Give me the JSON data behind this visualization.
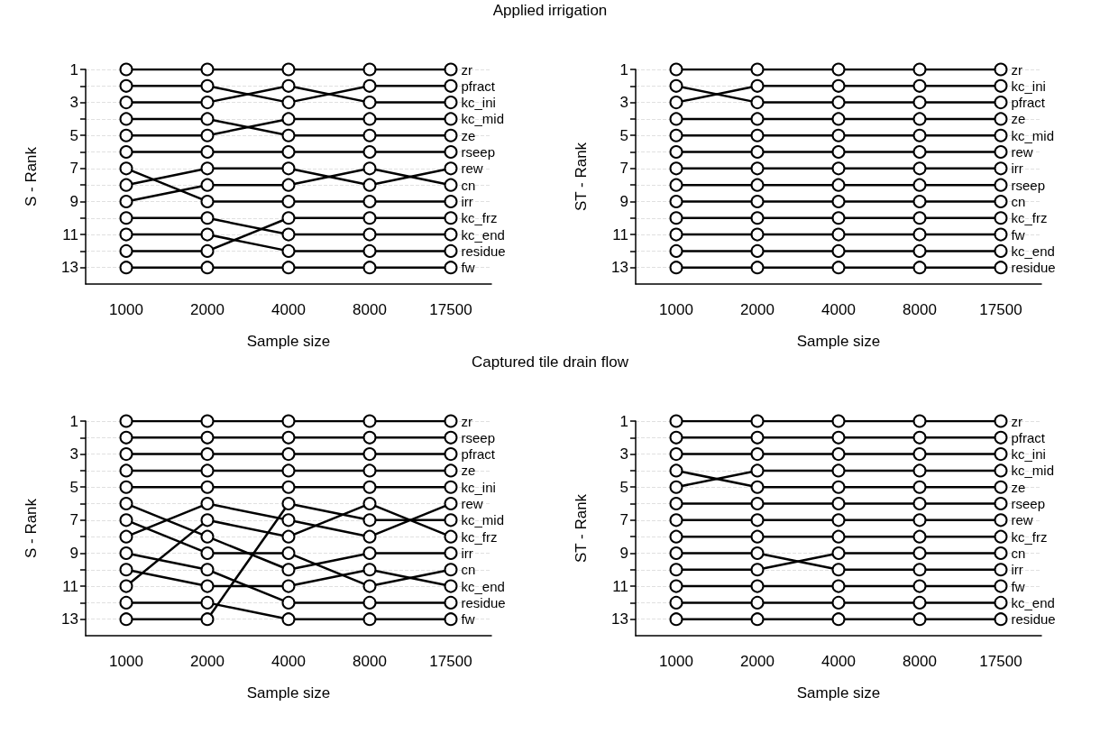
{
  "chart_data": [
    {
      "type": "line",
      "title": "Applied irrigation",
      "xlabel": "Sample size",
      "ylabel": "S - Rank",
      "categories": [
        "1000",
        "2000",
        "4000",
        "8000",
        "17500"
      ],
      "ylim": [
        14,
        1
      ],
      "yticks": [
        1,
        {
          "value": 2,
          "label": null
        },
        3,
        {
          "value": 4,
          "label": null
        },
        5,
        {
          "value": 6,
          "label": null
        },
        7,
        {
          "value": 8,
          "label": null
        },
        9,
        {
          "value": 10,
          "label": null
        },
        11,
        {
          "value": 12,
          "label": null
        },
        13
      ],
      "grid": "y",
      "marker": "circle",
      "line_style": "solid",
      "legend": false,
      "series": [
        {
          "name": "zr",
          "color": "#000000",
          "values": [
            1,
            1,
            1,
            1,
            1
          ]
        },
        {
          "name": "pfract",
          "color": "#000000",
          "values": [
            2,
            2,
            3,
            2,
            2
          ]
        },
        {
          "name": "kc_ini",
          "color": "#000000",
          "values": [
            3,
            3,
            2,
            3,
            3
          ]
        },
        {
          "name": "kc_mid",
          "color": "#000000",
          "values": [
            5,
            5,
            4,
            4,
            4
          ]
        },
        {
          "name": "ze",
          "color": "#000000",
          "values": [
            4,
            4,
            5,
            5,
            5
          ]
        },
        {
          "name": "rseep",
          "color": "#000000",
          "values": [
            6,
            6,
            6,
            6,
            6
          ]
        },
        {
          "name": "rew",
          "color": "#000000",
          "values": [
            8,
            7,
            7,
            8,
            7
          ]
        },
        {
          "name": "cn",
          "color": "#000000",
          "values": [
            9,
            8,
            8,
            7,
            8
          ]
        },
        {
          "name": "irr",
          "color": "#000000",
          "values": [
            7,
            9,
            9,
            9,
            9
          ]
        },
        {
          "name": "kc_frz",
          "color": "#000000",
          "values": [
            12,
            12,
            10,
            10,
            10
          ]
        },
        {
          "name": "kc_end",
          "color": "#000000",
          "values": [
            10,
            10,
            11,
            11,
            11
          ]
        },
        {
          "name": "residue",
          "color": "#000000",
          "values": [
            11,
            11,
            12,
            12,
            12
          ]
        },
        {
          "name": "fw",
          "color": "#000000",
          "values": [
            13,
            13,
            13,
            13,
            13
          ]
        }
      ]
    },
    {
      "type": "line",
      "xlabel": "Sample size",
      "ylabel": "ST - Rank",
      "categories": [
        "1000",
        "2000",
        "4000",
        "8000",
        "17500"
      ],
      "ylim": [
        14,
        1
      ],
      "yticks": [
        1,
        {
          "value": 2,
          "label": null
        },
        3,
        {
          "value": 4,
          "label": null
        },
        5,
        {
          "value": 6,
          "label": null
        },
        7,
        {
          "value": 8,
          "label": null
        },
        9,
        {
          "value": 10,
          "label": null
        },
        11,
        {
          "value": 12,
          "label": null
        },
        13
      ],
      "grid": "y",
      "marker": "circle",
      "line_style": "solid",
      "legend": false,
      "series": [
        {
          "name": "zr",
          "color": "#000000",
          "values": [
            1,
            1,
            1,
            1,
            1
          ]
        },
        {
          "name": "kc_ini",
          "color": "#000000",
          "values": [
            3,
            2,
            2,
            2,
            2
          ]
        },
        {
          "name": "pfract",
          "color": "#000000",
          "values": [
            2,
            3,
            3,
            3,
            3
          ]
        },
        {
          "name": "ze",
          "color": "#000000",
          "values": [
            4,
            4,
            4,
            4,
            4
          ]
        },
        {
          "name": "kc_mid",
          "color": "#000000",
          "values": [
            5,
            5,
            5,
            5,
            5
          ]
        },
        {
          "name": "rew",
          "color": "#000000",
          "values": [
            6,
            6,
            6,
            6,
            6
          ]
        },
        {
          "name": "irr",
          "color": "#000000",
          "values": [
            7,
            7,
            7,
            7,
            7
          ]
        },
        {
          "name": "rseep",
          "color": "#000000",
          "values": [
            8,
            8,
            8,
            8,
            8
          ]
        },
        {
          "name": "cn",
          "color": "#000000",
          "values": [
            9,
            9,
            9,
            9,
            9
          ]
        },
        {
          "name": "kc_frz",
          "color": "#000000",
          "values": [
            10,
            10,
            10,
            10,
            10
          ]
        },
        {
          "name": "fw",
          "color": "#000000",
          "values": [
            11,
            11,
            11,
            11,
            11
          ]
        },
        {
          "name": "kc_end",
          "color": "#000000",
          "values": [
            12,
            12,
            12,
            12,
            12
          ]
        },
        {
          "name": "residue",
          "color": "#000000",
          "values": [
            13,
            13,
            13,
            13,
            13
          ]
        }
      ]
    },
    {
      "type": "line",
      "title": "Captured tile drain flow",
      "xlabel": "Sample size",
      "ylabel": "S - Rank",
      "categories": [
        "1000",
        "2000",
        "4000",
        "8000",
        "17500"
      ],
      "ylim": [
        14,
        1
      ],
      "yticks": [
        1,
        {
          "value": 2,
          "label": null
        },
        3,
        {
          "value": 4,
          "label": null
        },
        5,
        {
          "value": 6,
          "label": null
        },
        7,
        {
          "value": 8,
          "label": null
        },
        9,
        {
          "value": 10,
          "label": null
        },
        11,
        {
          "value": 12,
          "label": null
        },
        13
      ],
      "grid": "y",
      "marker": "circle",
      "line_style": "solid",
      "legend": false,
      "series": [
        {
          "name": "zr",
          "color": "#000000",
          "values": [
            1,
            1,
            1,
            1,
            1
          ]
        },
        {
          "name": "rseep",
          "color": "#000000",
          "values": [
            2,
            2,
            2,
            2,
            2
          ]
        },
        {
          "name": "pfract",
          "color": "#000000",
          "values": [
            3,
            3,
            3,
            3,
            3
          ]
        },
        {
          "name": "ze",
          "color": "#000000",
          "values": [
            4,
            4,
            4,
            4,
            4
          ]
        },
        {
          "name": "kc_ini",
          "color": "#000000",
          "values": [
            5,
            5,
            5,
            5,
            5
          ]
        },
        {
          "name": "rew",
          "color": "#000000",
          "values": [
            8,
            6,
            7,
            8,
            6
          ]
        },
        {
          "name": "kc_mid",
          "color": "#000000",
          "values": [
            13,
            13,
            6,
            7,
            7
          ]
        },
        {
          "name": "kc_frz",
          "color": "#000000",
          "values": [
            11,
            7,
            8,
            6,
            8
          ]
        },
        {
          "name": "irr",
          "color": "#000000",
          "values": [
            6,
            8,
            10,
            9,
            9
          ]
        },
        {
          "name": "cn",
          "color": "#000000",
          "values": [
            7,
            9,
            9,
            11,
            10
          ]
        },
        {
          "name": "kc_end",
          "color": "#000000",
          "values": [
            10,
            11,
            11,
            10,
            11
          ]
        },
        {
          "name": "residue",
          "color": "#000000",
          "values": [
            9,
            10,
            12,
            12,
            12
          ]
        },
        {
          "name": "fw",
          "color": "#000000",
          "values": [
            12,
            12,
            13,
            13,
            13
          ]
        }
      ]
    },
    {
      "type": "line",
      "xlabel": "Sample size",
      "ylabel": "ST - Rank",
      "categories": [
        "1000",
        "2000",
        "4000",
        "8000",
        "17500"
      ],
      "ylim": [
        14,
        1
      ],
      "yticks": [
        1,
        {
          "value": 2,
          "label": null
        },
        3,
        {
          "value": 4,
          "label": null
        },
        5,
        {
          "value": 6,
          "label": null
        },
        7,
        {
          "value": 8,
          "label": null
        },
        9,
        {
          "value": 10,
          "label": null
        },
        11,
        {
          "value": 12,
          "label": null
        },
        13
      ],
      "grid": "y",
      "marker": "circle",
      "line_style": "solid",
      "legend": false,
      "series": [
        {
          "name": "zr",
          "color": "#000000",
          "values": [
            1,
            1,
            1,
            1,
            1
          ]
        },
        {
          "name": "pfract",
          "color": "#000000",
          "values": [
            2,
            2,
            2,
            2,
            2
          ]
        },
        {
          "name": "kc_ini",
          "color": "#000000",
          "values": [
            3,
            3,
            3,
            3,
            3
          ]
        },
        {
          "name": "kc_mid",
          "color": "#000000",
          "values": [
            5,
            4,
            4,
            4,
            4
          ]
        },
        {
          "name": "ze",
          "color": "#000000",
          "values": [
            4,
            5,
            5,
            5,
            5
          ]
        },
        {
          "name": "rseep",
          "color": "#000000",
          "values": [
            6,
            6,
            6,
            6,
            6
          ]
        },
        {
          "name": "rew",
          "color": "#000000",
          "values": [
            7,
            7,
            7,
            7,
            7
          ]
        },
        {
          "name": "kc_frz",
          "color": "#000000",
          "values": [
            8,
            8,
            8,
            8,
            8
          ]
        },
        {
          "name": "cn",
          "color": "#000000",
          "values": [
            10,
            10,
            9,
            9,
            9
          ]
        },
        {
          "name": "irr",
          "color": "#000000",
          "values": [
            9,
            9,
            10,
            10,
            10
          ]
        },
        {
          "name": "fw",
          "color": "#000000",
          "values": [
            11,
            11,
            11,
            11,
            11
          ]
        },
        {
          "name": "kc_end",
          "color": "#000000",
          "values": [
            12,
            12,
            12,
            12,
            12
          ]
        },
        {
          "name": "residue",
          "color": "#000000",
          "values": [
            13,
            13,
            13,
            13,
            13
          ]
        }
      ]
    }
  ]
}
